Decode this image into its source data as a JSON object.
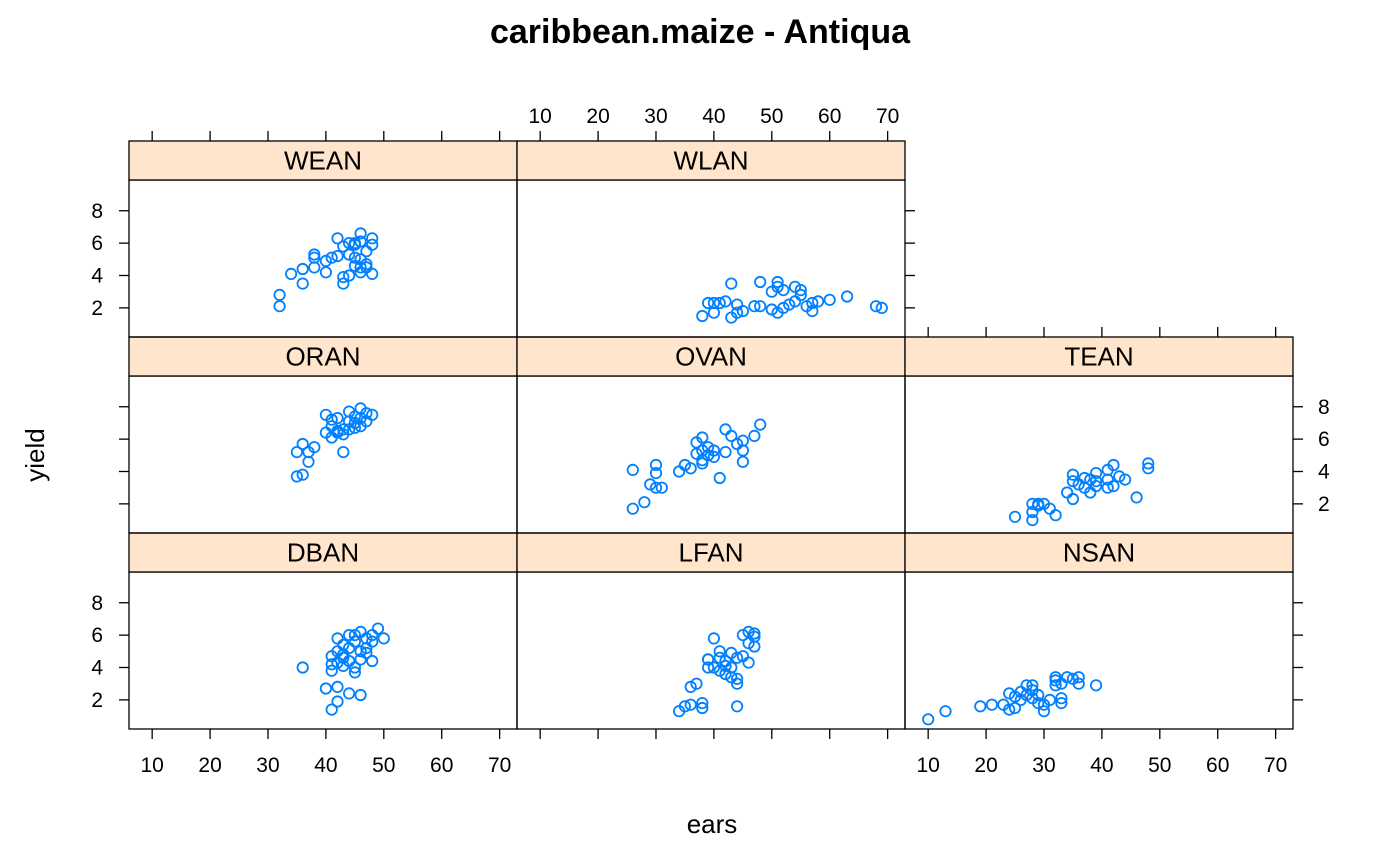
{
  "chart_data": {
    "type": "scatter",
    "title": "caribbean.maize - Antiqua",
    "xlabel": "ears",
    "ylabel": "yield",
    "xlim": [
      6,
      73
    ],
    "ylim": [
      0.2,
      9.9
    ],
    "xticks": [
      10,
      20,
      30,
      40,
      50,
      60,
      70
    ],
    "yticks": [
      2,
      4,
      6,
      8
    ],
    "layout": {
      "columns": 3,
      "rows": 3
    },
    "colors": {
      "strip": "#ffe5cc",
      "point": "#0080ff",
      "frame": "#000000"
    },
    "panels": [
      {
        "name": "DBAN",
        "row": 0,
        "col": 0,
        "points": [
          [
            36,
            4.0
          ],
          [
            40,
            2.7
          ],
          [
            41,
            1.4
          ],
          [
            41,
            3.8
          ],
          [
            41,
            4.2
          ],
          [
            41,
            4.7
          ],
          [
            42,
            2.8
          ],
          [
            42,
            1.9
          ],
          [
            42,
            4.3
          ],
          [
            42,
            5.0
          ],
          [
            42,
            5.8
          ],
          [
            43,
            4.6
          ],
          [
            43,
            5.4
          ],
          [
            43,
            4.1
          ],
          [
            44,
            6.0
          ],
          [
            44,
            5.2
          ],
          [
            44,
            2.4
          ],
          [
            45,
            5.6
          ],
          [
            45,
            4.0
          ],
          [
            45,
            3.7
          ],
          [
            45,
            6.0
          ],
          [
            46,
            5.0
          ],
          [
            46,
            4.5
          ],
          [
            46,
            2.3
          ],
          [
            46,
            6.2
          ],
          [
            47,
            5.2
          ],
          [
            47,
            5.8
          ],
          [
            47,
            4.9
          ],
          [
            48,
            6.0
          ],
          [
            48,
            4.4
          ],
          [
            48,
            5.6
          ],
          [
            49,
            6.4
          ],
          [
            50,
            5.8
          ],
          [
            43,
            4.8
          ],
          [
            44,
            4.4
          ]
        ]
      },
      {
        "name": "LFAN",
        "row": 0,
        "col": 1,
        "points": [
          [
            34,
            1.3
          ],
          [
            35,
            1.6
          ],
          [
            36,
            1.7
          ],
          [
            36,
            2.8
          ],
          [
            37,
            3.0
          ],
          [
            38,
            1.8
          ],
          [
            38,
            1.5
          ],
          [
            39,
            4.0
          ],
          [
            39,
            4.5
          ],
          [
            40,
            5.8
          ],
          [
            40,
            4.0
          ],
          [
            41,
            3.8
          ],
          [
            41,
            4.6
          ],
          [
            41,
            5.0
          ],
          [
            42,
            4.4
          ],
          [
            42,
            3.6
          ],
          [
            43,
            3.4
          ],
          [
            43,
            4.0
          ],
          [
            43,
            4.9
          ],
          [
            44,
            4.6
          ],
          [
            44,
            3.0
          ],
          [
            44,
            3.3
          ],
          [
            44,
            1.6
          ],
          [
            45,
            4.7
          ],
          [
            45,
            6.0
          ],
          [
            46,
            4.3
          ],
          [
            46,
            5.5
          ],
          [
            46,
            6.2
          ],
          [
            47,
            5.9
          ],
          [
            47,
            5.3
          ],
          [
            47,
            6.1
          ],
          [
            39,
            4.5
          ],
          [
            42,
            4.1
          ]
        ]
      },
      {
        "name": "NSAN",
        "row": 0,
        "col": 2,
        "points": [
          [
            10,
            0.8
          ],
          [
            13,
            1.3
          ],
          [
            19,
            1.6
          ],
          [
            21,
            1.7
          ],
          [
            23,
            1.7
          ],
          [
            24,
            2.4
          ],
          [
            24,
            1.4
          ],
          [
            25,
            1.5
          ],
          [
            25,
            2.2
          ],
          [
            26,
            2.0
          ],
          [
            26,
            2.5
          ],
          [
            27,
            2.3
          ],
          [
            27,
            2.9
          ],
          [
            28,
            2.1
          ],
          [
            28,
            2.9
          ],
          [
            28,
            2.6
          ],
          [
            29,
            2.3
          ],
          [
            29,
            1.8
          ],
          [
            30,
            1.7
          ],
          [
            30,
            1.3
          ],
          [
            32,
            3.2
          ],
          [
            32,
            2.9
          ],
          [
            32,
            3.4
          ],
          [
            33,
            2.1
          ],
          [
            33,
            1.8
          ],
          [
            33,
            3.0
          ],
          [
            34,
            3.4
          ],
          [
            35,
            3.3
          ],
          [
            36,
            3.0
          ],
          [
            36,
            3.4
          ],
          [
            39,
            2.9
          ],
          [
            31,
            2.0
          ]
        ]
      },
      {
        "name": "ORAN",
        "row": 1,
        "col": 0,
        "points": [
          [
            35,
            3.7
          ],
          [
            36,
            3.8
          ],
          [
            35,
            5.2
          ],
          [
            36,
            5.7
          ],
          [
            37,
            4.6
          ],
          [
            37,
            5.2
          ],
          [
            38,
            5.5
          ],
          [
            40,
            6.4
          ],
          [
            40,
            7.5
          ],
          [
            41,
            6.1
          ],
          [
            41,
            7.2
          ],
          [
            41,
            6.8
          ],
          [
            42,
            6.5
          ],
          [
            42,
            7.3
          ],
          [
            43,
            6.3
          ],
          [
            43,
            5.2
          ],
          [
            43,
            6.6
          ],
          [
            44,
            6.6
          ],
          [
            44,
            7.1
          ],
          [
            44,
            7.7
          ],
          [
            45,
            7.0
          ],
          [
            45,
            6.7
          ],
          [
            45,
            7.4
          ],
          [
            46,
            6.8
          ],
          [
            46,
            7.3
          ],
          [
            46,
            7.9
          ],
          [
            47,
            7.6
          ],
          [
            47,
            7.1
          ],
          [
            48,
            7.5
          ],
          [
            42,
            6.4
          ]
        ]
      },
      {
        "name": "OVAN",
        "row": 1,
        "col": 1,
        "points": [
          [
            26,
            1.7
          ],
          [
            26,
            4.1
          ],
          [
            28,
            2.1
          ],
          [
            29,
            3.2
          ],
          [
            30,
            3.0
          ],
          [
            30,
            4.4
          ],
          [
            30,
            3.9
          ],
          [
            31,
            3.0
          ],
          [
            34,
            4.0
          ],
          [
            35,
            4.4
          ],
          [
            36,
            4.2
          ],
          [
            37,
            5.1
          ],
          [
            37,
            5.8
          ],
          [
            38,
            4.7
          ],
          [
            38,
            4.5
          ],
          [
            38,
            5.3
          ],
          [
            38,
            6.1
          ],
          [
            39,
            5.0
          ],
          [
            39,
            5.5
          ],
          [
            40,
            4.9
          ],
          [
            40,
            5.3
          ],
          [
            41,
            3.6
          ],
          [
            42,
            6.6
          ],
          [
            42,
            5.2
          ],
          [
            43,
            6.2
          ],
          [
            44,
            5.7
          ],
          [
            45,
            5.9
          ],
          [
            45,
            5.3
          ],
          [
            45,
            4.6
          ],
          [
            47,
            6.2
          ],
          [
            48,
            6.9
          ]
        ]
      },
      {
        "name": "TEAN",
        "row": 1,
        "col": 2,
        "points": [
          [
            25,
            1.2
          ],
          [
            28,
            1.0
          ],
          [
            28,
            2.0
          ],
          [
            28,
            1.5
          ],
          [
            29,
            1.9
          ],
          [
            29,
            2.0
          ],
          [
            30,
            2.0
          ],
          [
            31,
            1.7
          ],
          [
            32,
            1.3
          ],
          [
            34,
            2.7
          ],
          [
            35,
            2.3
          ],
          [
            35,
            3.4
          ],
          [
            35,
            3.8
          ],
          [
            36,
            3.2
          ],
          [
            37,
            3.6
          ],
          [
            37,
            3.0
          ],
          [
            38,
            3.5
          ],
          [
            38,
            2.7
          ],
          [
            39,
            3.9
          ],
          [
            39,
            3.1
          ],
          [
            39,
            3.4
          ],
          [
            41,
            4.1
          ],
          [
            41,
            3.0
          ],
          [
            41,
            3.5
          ],
          [
            42,
            4.4
          ],
          [
            42,
            3.1
          ],
          [
            43,
            3.7
          ],
          [
            44,
            3.5
          ],
          [
            46,
            2.4
          ],
          [
            48,
            4.5
          ],
          [
            48,
            4.2
          ]
        ]
      },
      {
        "name": "WEAN",
        "row": 2,
        "col": 0,
        "points": [
          [
            32,
            2.8
          ],
          [
            32,
            2.1
          ],
          [
            34,
            4.1
          ],
          [
            36,
            3.5
          ],
          [
            36,
            4.4
          ],
          [
            38,
            4.5
          ],
          [
            38,
            5.1
          ],
          [
            38,
            5.3
          ],
          [
            40,
            4.2
          ],
          [
            40,
            4.9
          ],
          [
            41,
            5.1
          ],
          [
            42,
            6.3
          ],
          [
            42,
            5.2
          ],
          [
            43,
            5.8
          ],
          [
            43,
            3.5
          ],
          [
            43,
            3.9
          ],
          [
            44,
            4.0
          ],
          [
            44,
            5.3
          ],
          [
            45,
            6.0
          ],
          [
            45,
            5.1
          ],
          [
            45,
            4.6
          ],
          [
            45,
            5.9
          ],
          [
            46,
            6.1
          ],
          [
            46,
            4.5
          ],
          [
            46,
            6.6
          ],
          [
            46,
            4.2
          ],
          [
            47,
            5.5
          ],
          [
            47,
            4.7
          ],
          [
            47,
            4.5
          ],
          [
            48,
            6.3
          ],
          [
            48,
            5.9
          ],
          [
            48,
            4.1
          ],
          [
            44,
            6.0
          ],
          [
            46,
            5.0
          ]
        ]
      },
      {
        "name": "WLAN",
        "row": 2,
        "col": 1,
        "points": [
          [
            38,
            1.5
          ],
          [
            39,
            2.3
          ],
          [
            40,
            2.3
          ],
          [
            40,
            1.7
          ],
          [
            41,
            2.3
          ],
          [
            42,
            2.4
          ],
          [
            43,
            3.5
          ],
          [
            43,
            1.4
          ],
          [
            44,
            2.2
          ],
          [
            44,
            1.7
          ],
          [
            45,
            1.8
          ],
          [
            47,
            2.1
          ],
          [
            48,
            3.6
          ],
          [
            48,
            2.1
          ],
          [
            50,
            1.9
          ],
          [
            50,
            3.0
          ],
          [
            51,
            3.6
          ],
          [
            51,
            3.3
          ],
          [
            51,
            1.7
          ],
          [
            52,
            2.0
          ],
          [
            52,
            3.1
          ],
          [
            53,
            2.2
          ],
          [
            54,
            3.3
          ],
          [
            54,
            2.4
          ],
          [
            55,
            2.8
          ],
          [
            55,
            3.1
          ],
          [
            56,
            2.1
          ],
          [
            57,
            1.8
          ],
          [
            57,
            2.3
          ],
          [
            58,
            2.4
          ],
          [
            60,
            2.5
          ],
          [
            63,
            2.7
          ],
          [
            68,
            2.1
          ],
          [
            69,
            2.0
          ]
        ]
      }
    ]
  }
}
